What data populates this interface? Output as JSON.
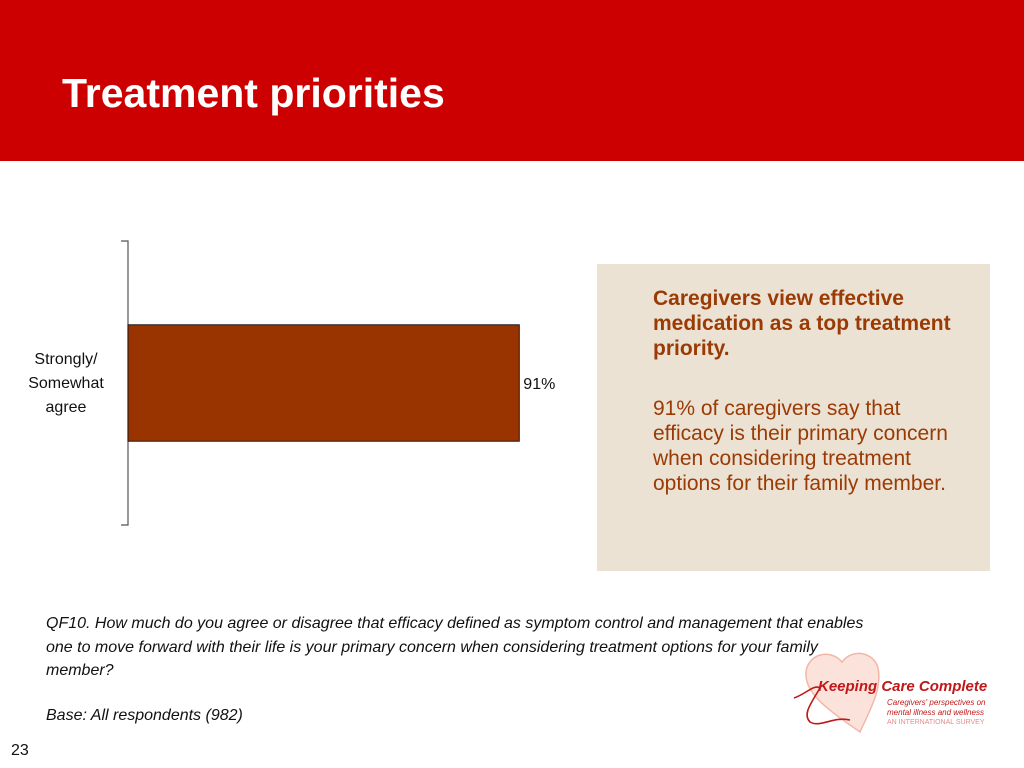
{
  "header": {
    "title": "Treatment priorities",
    "bg_color": "#cc0000"
  },
  "chart_data": {
    "type": "bar",
    "orientation": "horizontal",
    "categories": [
      "Strongly/\nSomewhat\nagree"
    ],
    "values": [
      91
    ],
    "unit": "%",
    "data_labels": [
      "91%"
    ],
    "xlim": [
      0,
      100
    ],
    "bar_color": "#993300",
    "grid": false,
    "legend": "none"
  },
  "callout": {
    "heading": "Caregivers view effective medication as a top treatment priority.",
    "body": "91% of caregivers say that efficacy is their primary concern when considering treatment options for their family member.",
    "bg_color": "#ebe2d3",
    "text_color": "#9a3a04"
  },
  "footer": {
    "question": "QF10. How much do you agree or disagree that efficacy defined as symptom control and management that enables one to move forward with their life is your primary concern when considering treatment options for your family member?",
    "base": "Base: All respondents (982)",
    "page_number": "23"
  },
  "logo": {
    "title": "Keeping Care Complete",
    "subtitle_1": "Caregivers' perspectives on",
    "subtitle_2": "mental illness and wellness",
    "subtitle_3": "AN INTERNATIONAL SURVEY",
    "icon": "heart-icon"
  }
}
